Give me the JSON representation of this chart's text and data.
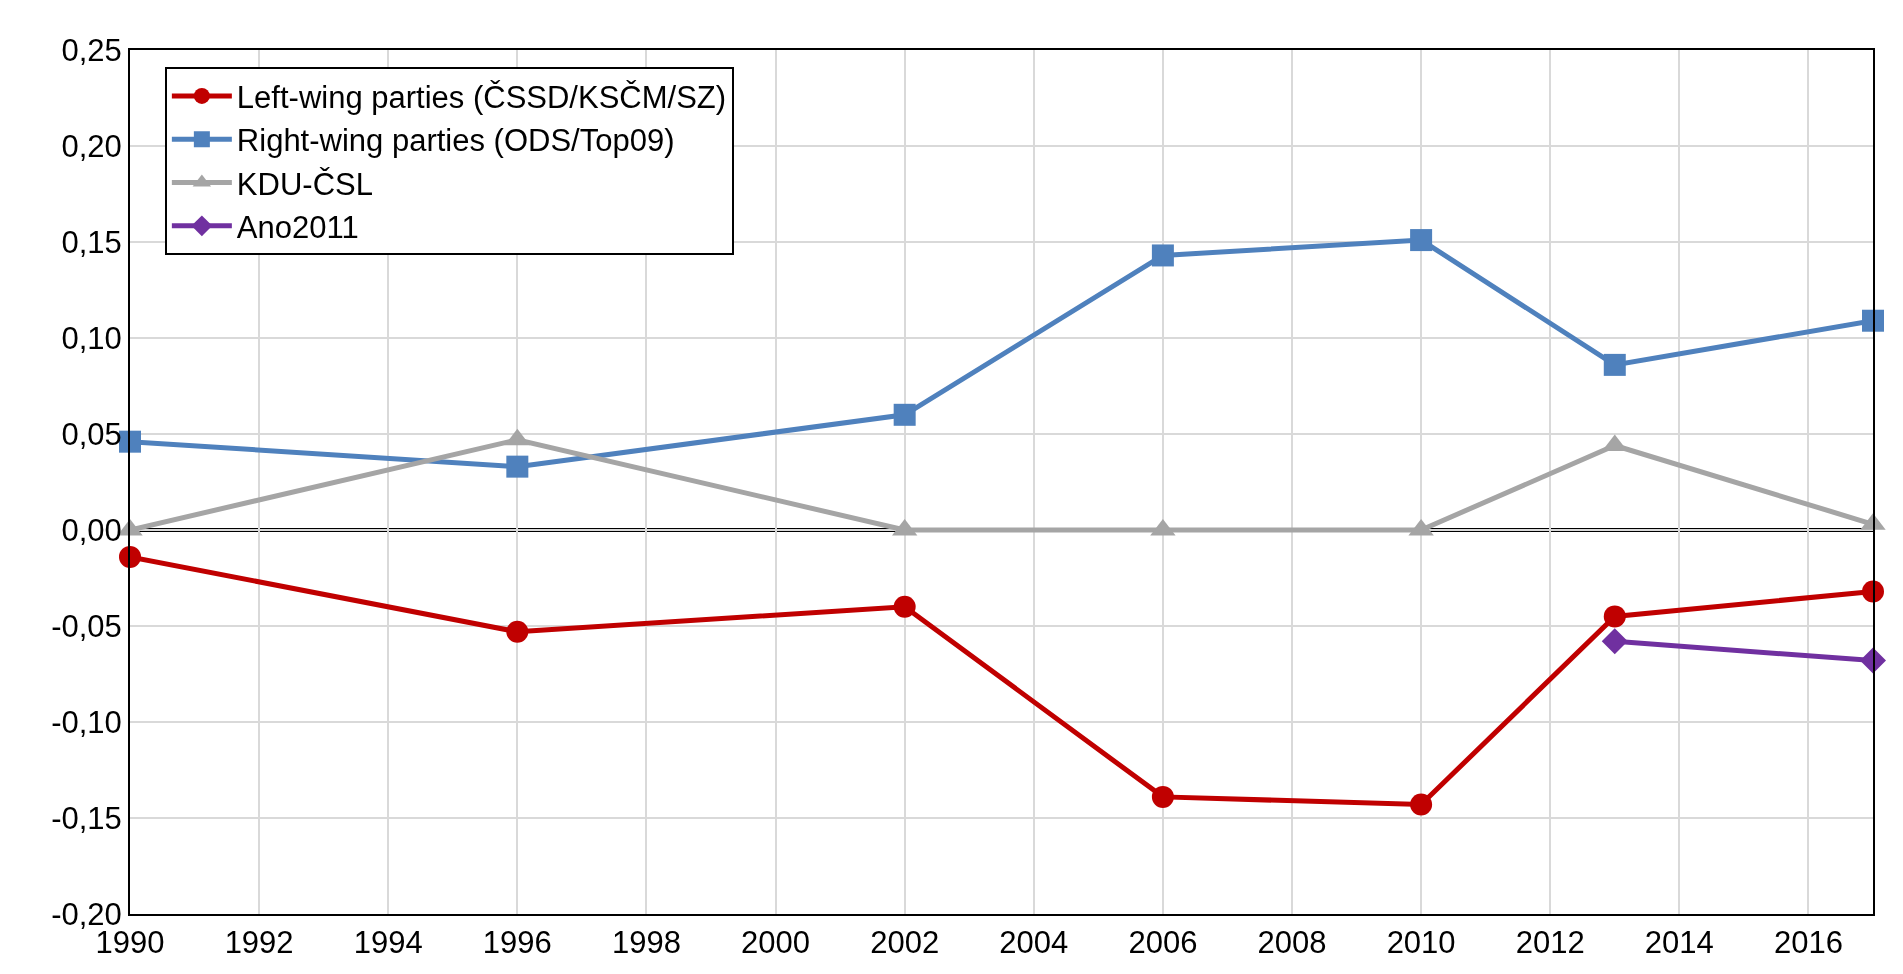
{
  "chart_data": {
    "type": "line",
    "x": [
      1990,
      1996,
      2002,
      2006,
      2010,
      2013,
      2017
    ],
    "series": [
      {
        "name": "Left-wing parties (ČSSD/KSČM/SZ)",
        "color": "#c00000",
        "marker": "circle",
        "values": [
          -0.014,
          -0.053,
          -0.04,
          -0.139,
          -0.143,
          -0.045,
          -0.032
        ]
      },
      {
        "name": "Right-wing parties (ODS/Top09)",
        "color": "#4f81bd",
        "marker": "square",
        "values": [
          0.046,
          0.033,
          0.06,
          0.143,
          0.151,
          0.086,
          0.109
        ]
      },
      {
        "name": "KDU-ČSL",
        "color": "#a5a5a5",
        "marker": "triangle",
        "values": [
          0,
          0.047,
          0,
          0,
          0,
          0.044,
          0.003
        ]
      },
      {
        "name": "Ano2011",
        "color": "#7030a0",
        "marker": "diamond",
        "values": [
          null,
          null,
          null,
          null,
          null,
          -0.058,
          -0.068
        ]
      }
    ],
    "xlim": [
      1990,
      2017
    ],
    "xticks": [
      1990,
      1992,
      1994,
      1996,
      1998,
      2000,
      2002,
      2004,
      2006,
      2008,
      2010,
      2012,
      2014,
      2016
    ],
    "ylim": [
      -0.2,
      0.25
    ],
    "yticks": [
      {
        "value": -0.2,
        "label": "-0,20"
      },
      {
        "value": -0.15,
        "label": "-0,15"
      },
      {
        "value": -0.1,
        "label": "-0,10"
      },
      {
        "value": -0.05,
        "label": "-0,05"
      },
      {
        "value": 0,
        "label": "0,00"
      },
      {
        "value": 0.05,
        "label": "0,05"
      },
      {
        "value": 0.1,
        "label": "0,10"
      },
      {
        "value": 0.15,
        "label": "0,15"
      },
      {
        "value": 0.2,
        "label": "0,20"
      },
      {
        "value": 0.25,
        "label": "0,25"
      }
    ],
    "ref_lines": [
      {
        "axis": "y",
        "value": 0,
        "color": "#000000"
      }
    ],
    "grid": true,
    "legend": "top left",
    "line_style": "solid"
  }
}
